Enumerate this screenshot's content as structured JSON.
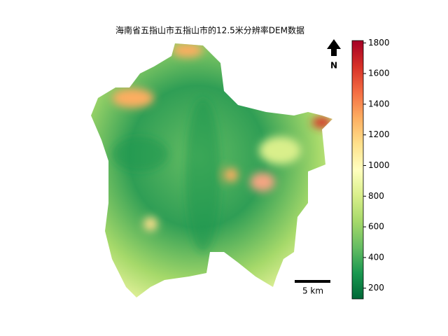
{
  "title": "海南省五指山市五指山市的12.5米分辨率DEM数据",
  "north_label": "N",
  "scale_bar": {
    "label": "5 km"
  },
  "colorbar": {
    "lim": [
      130,
      1815
    ],
    "ticks": [
      200,
      400,
      600,
      800,
      1000,
      1200,
      1400,
      1600,
      1800
    ],
    "colors": [
      "#006837",
      "#1a9850",
      "#66bd63",
      "#a6d96a",
      "#d9ef8b",
      "#ffffbf",
      "#fee08b",
      "#fdae61",
      "#f46d43",
      "#d73027",
      "#a50026"
    ]
  }
}
